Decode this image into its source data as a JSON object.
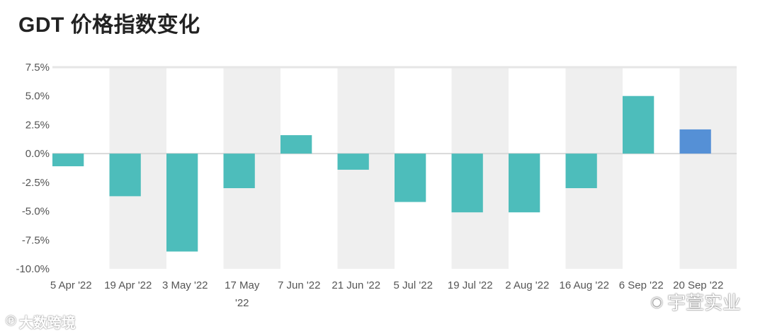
{
  "title": "GDT 价格指数变化",
  "watermarks": {
    "left_text": "大数跨境",
    "left_icon": "bird-logo-icon",
    "right_text": "宇萱实业",
    "right_icon": "wechat-icon"
  },
  "colors": {
    "bar": "#4dbdbb",
    "bar_highlight": "#5590d6",
    "band": "#efefef",
    "zero_line": "#d9d9d9"
  },
  "chart_data": {
    "type": "bar",
    "title": "GDT 价格指数变化",
    "xlabel": "",
    "ylabel": "",
    "ylim": [
      -10.0,
      7.5
    ],
    "yticks": [
      "7.5%",
      "5.0%",
      "2.5%",
      "0.0%",
      "-2.5%",
      "-5.0%",
      "-7.5%",
      "-10.0%"
    ],
    "ytick_values": [
      7.5,
      5.0,
      2.5,
      0.0,
      -2.5,
      -5.0,
      -7.5,
      -10.0
    ],
    "categories": [
      "5 Apr '22",
      "19 Apr '22",
      "3 May '22",
      "17 May '22",
      "7 Jun '22",
      "21 Jun '22",
      "5 Jul '22",
      "19 Jul '22",
      "2 Aug '22",
      "16 Aug '22",
      "6 Sep '22",
      "20 Sep '22"
    ],
    "values": [
      -1.1,
      -3.7,
      -8.5,
      -3.0,
      1.6,
      -1.4,
      -4.2,
      -5.1,
      -5.1,
      -3.0,
      5.0,
      2.1
    ],
    "highlight_index": 11,
    "grid": false,
    "legend": "none"
  }
}
